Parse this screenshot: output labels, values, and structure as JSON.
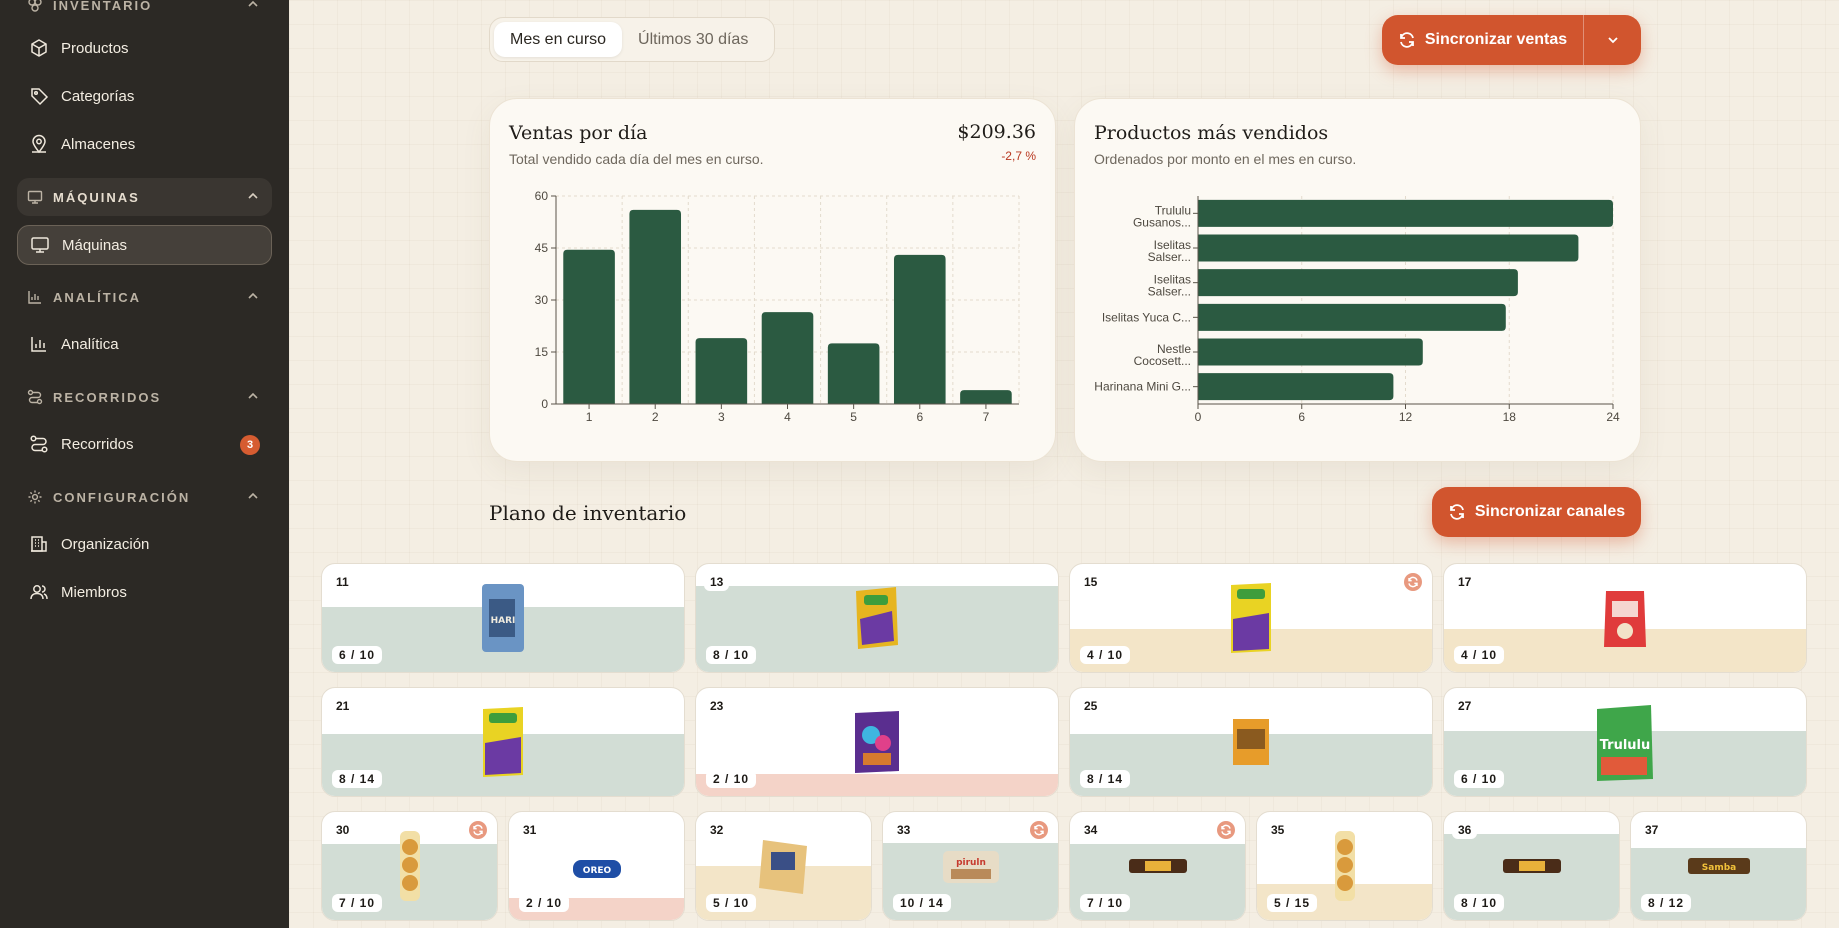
{
  "sidebar": {
    "sections": [
      {
        "label": "INVENTARIO",
        "icon": "box-stack-icon"
      },
      {
        "label": "MÁQUINAS",
        "icon": "monitor-icon"
      },
      {
        "label": "ANALÍTICA",
        "icon": "bar-chart-icon"
      },
      {
        "label": "RECORRIDOS",
        "icon": "route-icon"
      },
      {
        "label": "CONFIGURACIÓN",
        "icon": "gear-icon"
      }
    ],
    "items": [
      {
        "label": "Productos",
        "icon": "cube-icon"
      },
      {
        "label": "Categorías",
        "icon": "tag-icon"
      },
      {
        "label": "Almacenes",
        "icon": "location-pin-icon"
      },
      {
        "label": "Máquinas",
        "icon": "monitor-icon"
      },
      {
        "label": "Analítica",
        "icon": "bar-chart-icon"
      },
      {
        "label": "Recorridos",
        "icon": "route-icon",
        "badge": "3"
      },
      {
        "label": "Organización",
        "icon": "building-icon"
      },
      {
        "label": "Miembros",
        "icon": "users-icon"
      }
    ]
  },
  "toolbar": {
    "period_tabs": [
      "Mes en curso",
      "Últimos 30 días"
    ],
    "sync_sales_label": "Sincronizar ventas",
    "accent": "#d1552e"
  },
  "sales_card": {
    "title": "Ventas por día",
    "subtitle": "Total vendido cada día del mes en curso.",
    "total": "$209.36",
    "delta": "-2,7 %"
  },
  "top_card": {
    "title": "Productos más vendidos",
    "subtitle": "Ordenados por monto en el mes en curso."
  },
  "chart_data": [
    {
      "type": "bar",
      "categories": [
        "1",
        "2",
        "3",
        "4",
        "5",
        "6",
        "7"
      ],
      "values": [
        44.5,
        56,
        19,
        26.5,
        17.5,
        43,
        4
      ],
      "ylim": [
        0,
        60
      ],
      "yticks": [
        0,
        15,
        30,
        45,
        60
      ],
      "grid": true,
      "color": "#2b5a41"
    },
    {
      "type": "bar",
      "orientation": "horizontal",
      "categories": [
        "Trululu Gusanos...",
        "Iselitas Salser...",
        "Iselitas Salser...",
        "Iselitas Yuca C...",
        "Nestle Cocosett...",
        "Harinana Mini G..."
      ],
      "values": [
        24,
        22,
        18.5,
        17.8,
        13,
        11.3
      ],
      "xlim": [
        0,
        24
      ],
      "xticks": [
        0,
        6,
        12,
        18,
        24
      ],
      "grid": true,
      "color": "#2b5a41"
    }
  ],
  "inventory": {
    "title": "Plano de inventario",
    "sync_channels_label": "Sincronizar canales",
    "slots": [
      {
        "num": "11",
        "qty": "6 / 10",
        "level": 0.6,
        "tone": "green",
        "sync": false,
        "product": "harinana-bag"
      },
      {
        "num": "13",
        "qty": "8 / 10",
        "level": 0.8,
        "tone": "green",
        "sync": false,
        "product": "yellow-bag"
      },
      {
        "num": "15",
        "qty": "4 / 10",
        "level": 0.4,
        "tone": "sand",
        "sync": true,
        "product": "green-bag"
      },
      {
        "num": "17",
        "qty": "4 / 10",
        "level": 0.4,
        "tone": "sand",
        "sync": false,
        "product": "red-bag"
      },
      {
        "num": "21",
        "qty": "8 / 14",
        "level": 0.57,
        "tone": "green",
        "sync": false,
        "product": "green-bag"
      },
      {
        "num": "23",
        "qty": "2 / 10",
        "level": 0.2,
        "tone": "pink",
        "sync": false,
        "product": "purple-bag"
      },
      {
        "num": "25",
        "qty": "8 / 14",
        "level": 0.57,
        "tone": "green",
        "sync": false,
        "product": "orange-bag"
      },
      {
        "num": "27",
        "qty": "6 / 10",
        "level": 0.6,
        "tone": "green",
        "sync": false,
        "product": "trululu-bag"
      },
      {
        "num": "30",
        "qty": "7 / 10",
        "level": 0.7,
        "tone": "green",
        "sync": true,
        "product": "bread-pack"
      },
      {
        "num": "31",
        "qty": "2 / 10",
        "level": 0.2,
        "tone": "pink",
        "sync": false,
        "product": "oreo-pack"
      },
      {
        "num": "32",
        "qty": "5 / 10",
        "level": 0.5,
        "tone": "sand",
        "sync": false,
        "product": "cake-pack"
      },
      {
        "num": "33",
        "qty": "10 / 14",
        "level": 0.71,
        "tone": "green",
        "sync": true,
        "product": "piazza-pack"
      },
      {
        "num": "34",
        "qty": "7 / 10",
        "level": 0.7,
        "tone": "green",
        "sync": true,
        "product": "chocolate-bar"
      },
      {
        "num": "35",
        "qty": "5 / 15",
        "level": 0.33,
        "tone": "sand",
        "sync": false,
        "product": "bread-pack"
      },
      {
        "num": "36",
        "qty": "8 / 10",
        "level": 0.8,
        "tone": "green",
        "sync": false,
        "product": "chocolate-bar"
      },
      {
        "num": "37",
        "qty": "8 / 12",
        "level": 0.67,
        "tone": "green",
        "sync": false,
        "product": "samba-bar"
      }
    ]
  }
}
